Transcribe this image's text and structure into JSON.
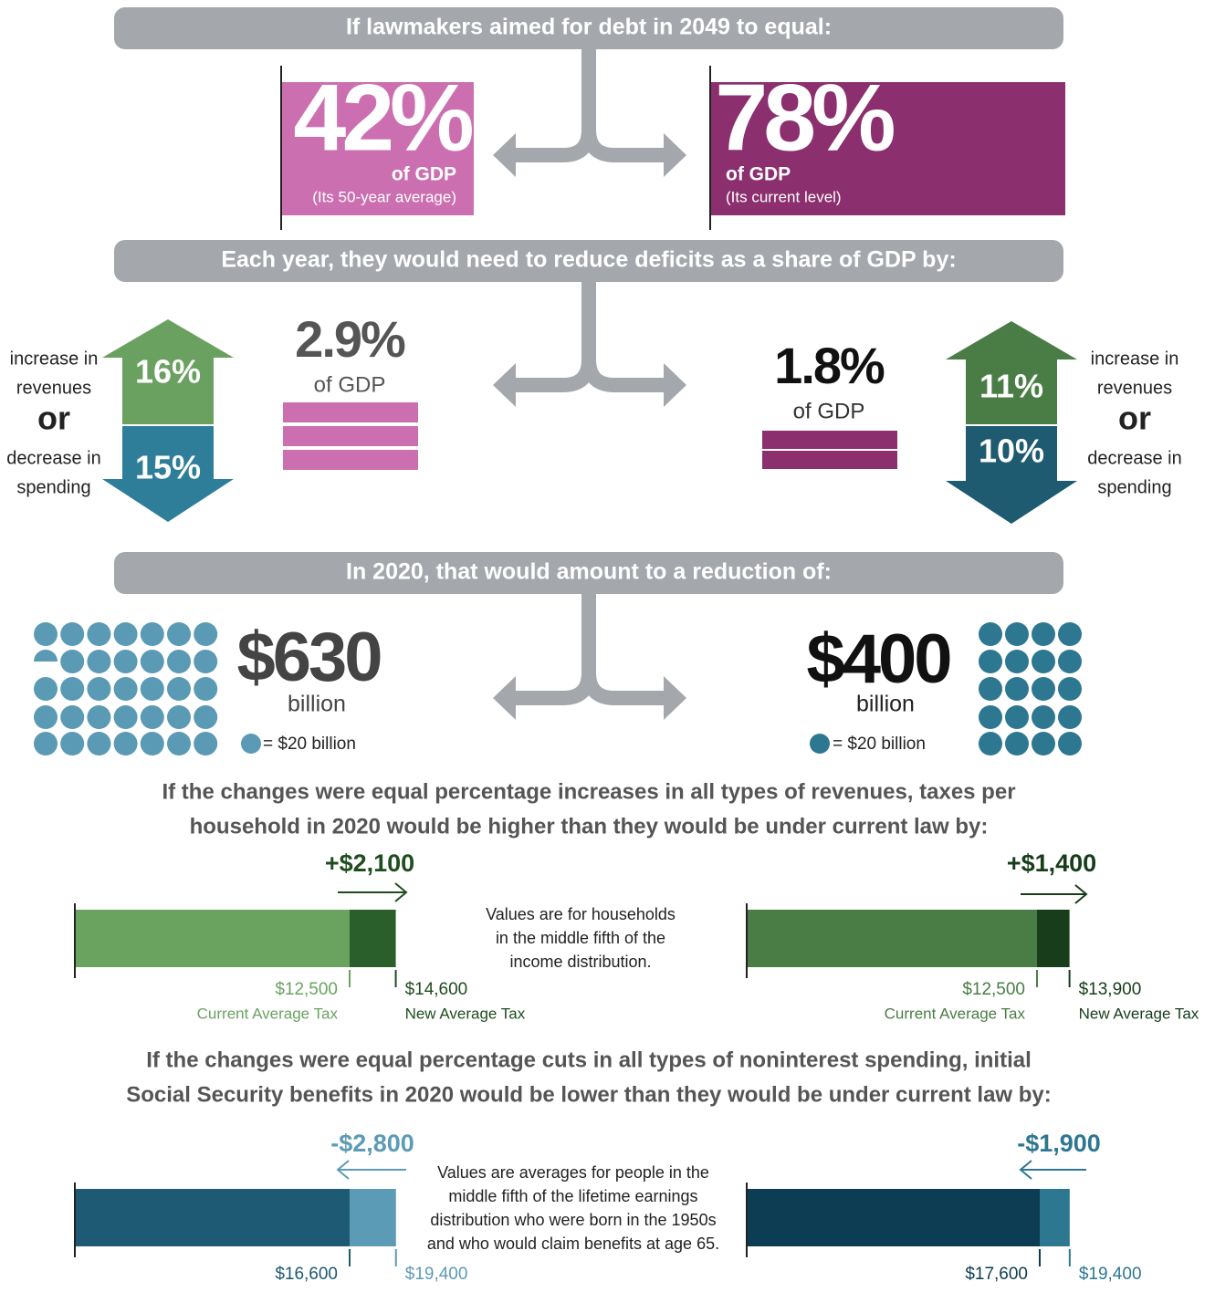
{
  "banners": [
    "If lawmakers aimed for debt in 2049 to equal:",
    "Each year, they would need to reduce deficits as a share of GDP by:",
    "In 2020, that would amount to a reduction of:"
  ],
  "targets": [
    {
      "value": "42%",
      "unit": "of GDP",
      "note": "(Its 50-year average)"
    },
    {
      "value": "78%",
      "unit": "of GDP",
      "note": "(Its current level)"
    }
  ],
  "deficit_reductions": [
    {
      "value": "2.9%",
      "unit": "of GDP",
      "revenue_increase": "16%",
      "spending_decrease": "15%"
    },
    {
      "value": "1.8%",
      "unit": "of GDP",
      "revenue_increase": "11%",
      "spending_decrease": "10%"
    }
  ],
  "side_labels": {
    "revenues": [
      "increase in",
      "revenues"
    ],
    "or": "or",
    "spending": [
      "decrease in",
      "spending"
    ]
  },
  "amounts": [
    {
      "value": "$630",
      "unit": "billion",
      "legend": "= $20 billion"
    },
    {
      "value": "$400",
      "unit": "billion",
      "legend": "= $20 billion"
    }
  ],
  "tax_heading": [
    "If the changes were equal percentage increases in all types of revenues, taxes per",
    "household in 2020 would be higher than they would be under current law by:"
  ],
  "tax_note": [
    "Values are for households",
    "in the middle fifth of the",
    "income distribution."
  ],
  "tax_panels": [
    {
      "change": "+$2,100",
      "current": {
        "value": 12500,
        "label": "$12,500"
      },
      "current_label": "Current Average Tax",
      "new": {
        "value": 14600,
        "label": "$14,600"
      },
      "new_label": "New Average Tax"
    },
    {
      "change": "+$1,400",
      "current": {
        "value": 12500,
        "label": "$12,500"
      },
      "current_label": "Current Average Tax",
      "new": {
        "value": 13900,
        "label": "$13,900"
      },
      "new_label": "New Average Tax"
    }
  ],
  "benefit_heading": [
    "If the changes were equal percentage cuts in all types of noninterest spending, initial",
    "Social Security benefits in 2020 would be lower than they would be under current law by:"
  ],
  "benefit_note": [
    "Values are averages for people in the",
    "middle fifth of the lifetime earnings",
    "distribution who were born in the 1950s",
    "and who would claim benefits at age 65."
  ],
  "benefit_panels": [
    {
      "change": "-$2,800",
      "current": {
        "value": 16600,
        "label": "$16,600"
      },
      "new": {
        "value": 19400,
        "label": "$19,400"
      }
    },
    {
      "change": "-$1,900",
      "current": {
        "value": 17600,
        "label": "$17,600"
      },
      "new": {
        "value": 19400,
        "label": "$19,400"
      }
    }
  ]
}
